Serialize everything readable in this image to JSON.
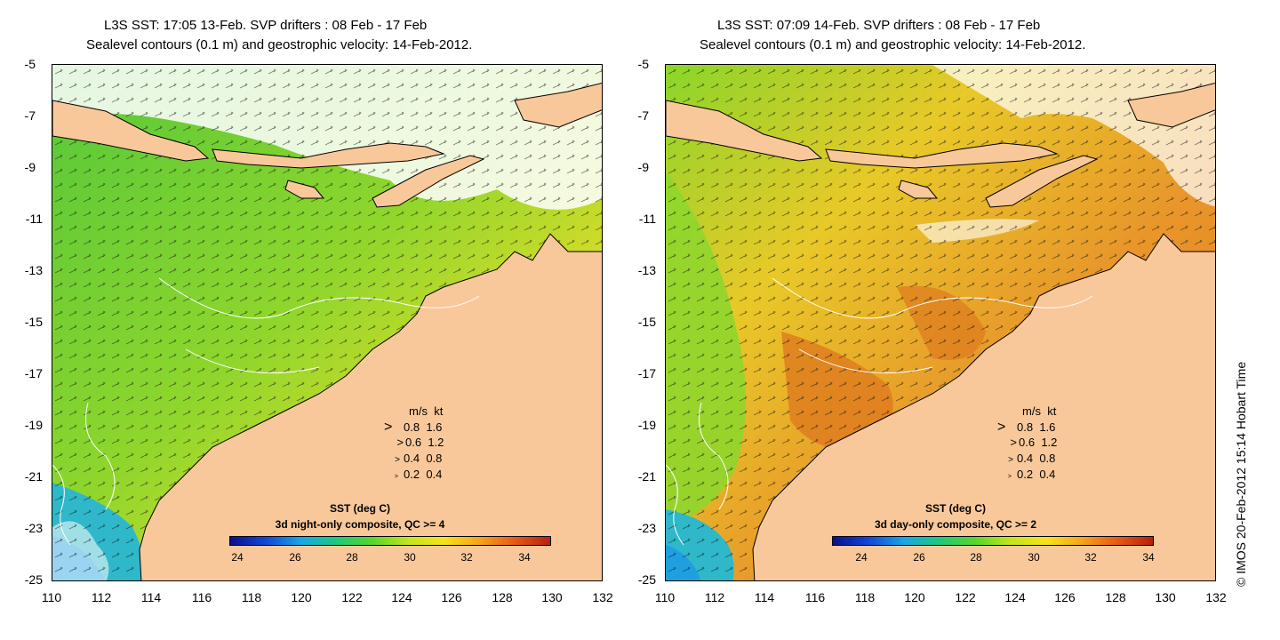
{
  "left": {
    "title_line1": "L3S SST: 17:05 13-Feb. SVP drifters : 08 Feb - 17 Feb",
    "title_line2": "Sealevel contours (0.1 m) and geostrophic velocity: 14-Feb-2012.",
    "colorbar_title": "SST (deg C)",
    "colorbar_subtitle": "3d night-only composite, QC >= 4",
    "sea_color": "#6fd237",
    "warm_color": "#d6dc2a"
  },
  "right": {
    "title_line1": "L3S SST: 07:09 14-Feb. SVP drifters : 08 Feb - 17 Feb",
    "title_line2": "Sealevel contours (0.1 m) and geostrophic velocity: 14-Feb-2012.",
    "colorbar_title": "SST (deg C)",
    "colorbar_subtitle": "3d day-only composite, QC >= 2",
    "sea_color": "#e8c928",
    "warm_color": "#e07a1e"
  },
  "y_ticks": [
    "-5",
    "-7",
    "-9",
    "-11",
    "-13",
    "-15",
    "-17",
    "-19",
    "-21",
    "-23",
    "-25"
  ],
  "x_ticks": [
    "110",
    "112",
    "114",
    "116",
    "118",
    "120",
    "122",
    "124",
    "126",
    "128",
    "130",
    "132"
  ],
  "colorbar_ticks": [
    "24",
    "26",
    "28",
    "30",
    "32",
    "34"
  ],
  "speed_legend": {
    "header_ms": "m/s",
    "header_kt": "kt",
    "rows": [
      {
        "ms": "0.8",
        "kt": "1.6"
      },
      {
        "ms": "0.6",
        "kt": "1.2"
      },
      {
        "ms": "0.4",
        "kt": "0.8"
      },
      {
        "ms": "0.2",
        "kt": "0.4"
      }
    ]
  },
  "credit": "© IMOS 20-Feb-2012 15:14 Hobart Time",
  "land_color": "#f9c89a"
}
